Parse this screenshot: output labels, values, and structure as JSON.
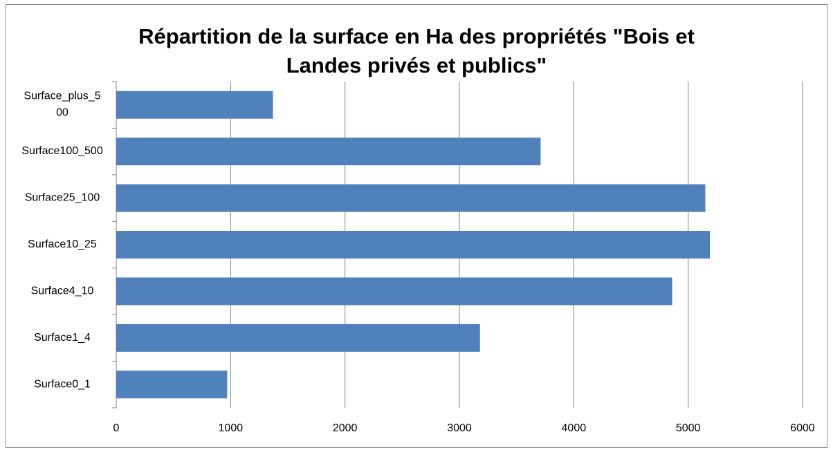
{
  "chart_data": {
    "type": "bar",
    "orientation": "horizontal",
    "title": "Répartition de la surface en Ha des propriétés \"Bois et Landes privés et publics\"",
    "categories": [
      "Surface0_1",
      "Surface1_4",
      "Surface4_10",
      "Surface10_25",
      "Surface25_100",
      "Surface100_500",
      "Surface_plus_500"
    ],
    "values": [
      970,
      3180,
      4860,
      5190,
      5150,
      3710,
      1370
    ],
    "color": "#4f81bd",
    "xlim": [
      0,
      6000
    ],
    "xticks": [
      0,
      1000,
      2000,
      3000,
      4000,
      5000,
      6000
    ],
    "grid": true
  }
}
